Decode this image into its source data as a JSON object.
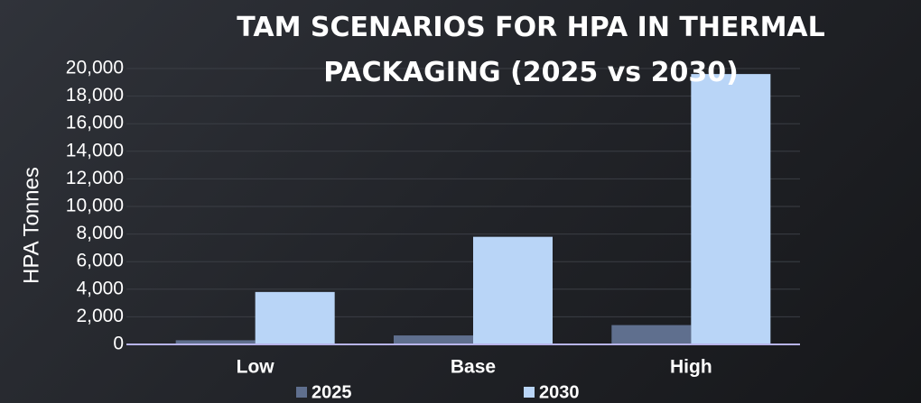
{
  "chart_data": {
    "type": "bar",
    "title": "TAM SCENARIOS FOR HPA IN THERMAL PACKAGING (2025 vs 2030)",
    "y_label": "HPA Tonnes",
    "categories": [
      "Low",
      "Base",
      "High"
    ],
    "series": [
      {
        "name": "2025",
        "color": "#5f6f8e",
        "values": [
          300,
          650,
          1400
        ]
      },
      {
        "name": "2030",
        "color": "#b9d5f7",
        "values": [
          3800,
          7800,
          19600
        ]
      }
    ],
    "ylim": [
      0,
      20000
    ],
    "yticks": [
      0,
      {
        "value": 2000,
        "label": "2,000"
      },
      {
        "value": 4000,
        "label": "4,000"
      },
      {
        "value": 6000,
        "label": "6,000"
      },
      {
        "value": 8000,
        "label": "8,000"
      },
      {
        "value": 10000,
        "label": "10,000"
      },
      {
        "value": 12000,
        "label": "12,000"
      },
      {
        "value": 14000,
        "label": "14,000"
      },
      {
        "value": 16000,
        "label": "16,000"
      },
      {
        "value": 18000,
        "label": "18,000"
      },
      {
        "value": 20000,
        "label": "20,000"
      }
    ],
    "grid": true,
    "legend": "bottom"
  }
}
